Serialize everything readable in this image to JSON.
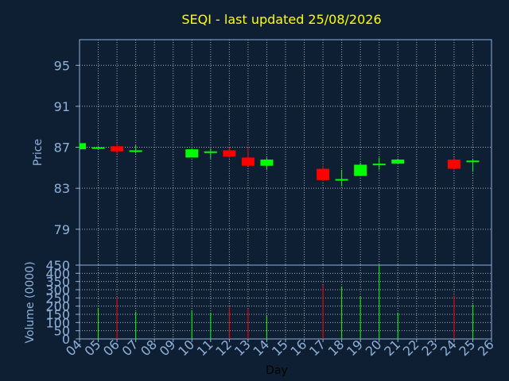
{
  "chart_data": {
    "type": "candlestick",
    "title": "SEQI - last updated 25/08/2026",
    "xlabel": "Day",
    "price_axis": {
      "label": "Price",
      "ylim": [
        75.5,
        97.5
      ],
      "ticks": [
        "95",
        "91",
        "87",
        "83",
        "79"
      ],
      "tick_values": [
        95,
        91,
        87,
        83,
        79
      ]
    },
    "volume_axis": {
      "label": "Volume (0000)",
      "ylim": [
        0,
        450
      ],
      "ticks": [
        "450",
        "400",
        "350",
        "300",
        "250",
        "200",
        "150",
        "100",
        "50",
        "0"
      ],
      "tick_values": [
        450,
        400,
        350,
        300,
        250,
        200,
        150,
        100,
        50,
        0
      ]
    },
    "x_ticks": [
      "04",
      "05",
      "06",
      "07",
      "08",
      "09",
      "10",
      "11",
      "12",
      "13",
      "14",
      "15",
      "16",
      "17",
      "18",
      "19",
      "20",
      "21",
      "22",
      "23",
      "24",
      "25",
      "26"
    ],
    "grid": true,
    "colors": {
      "background": "#0f1f33",
      "title": "#ffff00",
      "axis_text": "#8fb1d9",
      "up": "#00ff00",
      "down": "#ff0000",
      "grid": "#c0c8d0"
    },
    "candles": [
      {
        "day": "04",
        "open": 86.8,
        "high": 87.5,
        "low": 86.8,
        "close": 87.4
      },
      {
        "day": "05",
        "open": 87.0,
        "high": 87.1,
        "low": 86.9,
        "close": 87.0
      },
      {
        "day": "06",
        "open": 87.1,
        "high": 87.4,
        "low": 86.3,
        "close": 86.6
      },
      {
        "day": "07",
        "open": 86.7,
        "high": 87.2,
        "low": 86.4,
        "close": 86.7
      },
      {
        "day": "10",
        "open": 86.0,
        "high": 86.9,
        "low": 86.0,
        "close": 86.8
      },
      {
        "day": "11",
        "open": 86.6,
        "high": 86.9,
        "low": 85.9,
        "close": 86.6
      },
      {
        "day": "12",
        "open": 86.7,
        "high": 87.0,
        "low": 86.0,
        "close": 86.1
      },
      {
        "day": "13",
        "open": 86.0,
        "high": 87.0,
        "low": 85.2,
        "close": 85.2
      },
      {
        "day": "14",
        "open": 85.2,
        "high": 86.0,
        "low": 84.8,
        "close": 85.8
      },
      {
        "day": "17",
        "open": 84.9,
        "high": 85.2,
        "low": 83.7,
        "close": 83.8
      },
      {
        "day": "18",
        "open": 83.9,
        "high": 84.8,
        "low": 83.2,
        "close": 83.9
      },
      {
        "day": "19",
        "open": 84.2,
        "high": 85.5,
        "low": 84.2,
        "close": 85.3
      },
      {
        "day": "20",
        "open": 85.3,
        "high": 86.0,
        "low": 84.8,
        "close": 85.4
      },
      {
        "day": "21",
        "open": 85.4,
        "high": 85.9,
        "low": 85.4,
        "close": 85.8
      },
      {
        "day": "24",
        "open": 85.8,
        "high": 86.0,
        "low": 84.8,
        "close": 84.9
      },
      {
        "day": "25",
        "open": 85.6,
        "high": 85.8,
        "low": 84.6,
        "close": 85.7
      }
    ],
    "volume": [
      {
        "day": "04",
        "value": 0
      },
      {
        "day": "05",
        "value": 190
      },
      {
        "day": "06",
        "value": 250
      },
      {
        "day": "07",
        "value": 165
      },
      {
        "day": "10",
        "value": 175
      },
      {
        "day": "11",
        "value": 160
      },
      {
        "day": "12",
        "value": 195
      },
      {
        "day": "13",
        "value": 185
      },
      {
        "day": "14",
        "value": 140
      },
      {
        "day": "17",
        "value": 330
      },
      {
        "day": "18",
        "value": 320
      },
      {
        "day": "19",
        "value": 260
      },
      {
        "day": "20",
        "value": 460
      },
      {
        "day": "21",
        "value": 160
      },
      {
        "day": "24",
        "value": 265
      },
      {
        "day": "25",
        "value": 210
      }
    ]
  }
}
